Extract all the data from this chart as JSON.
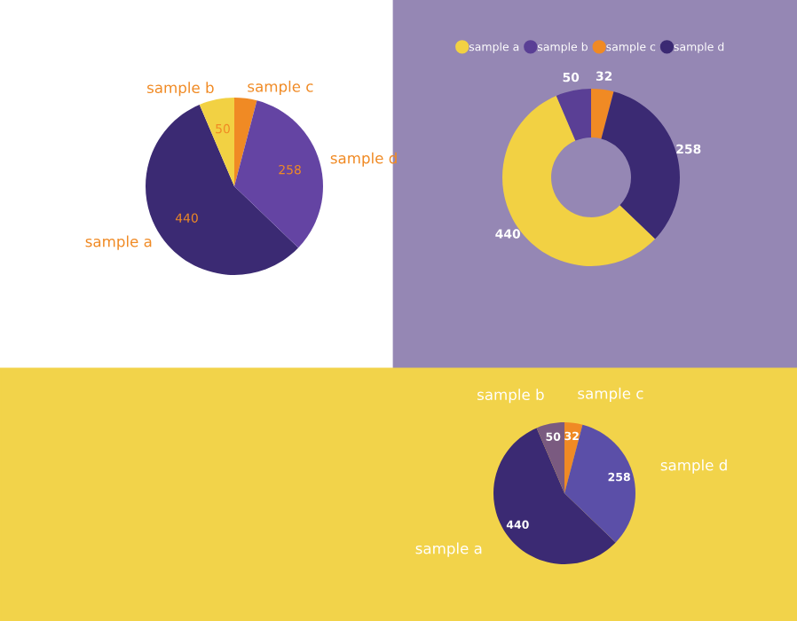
{
  "chart_data": [
    {
      "type": "pie",
      "categories": [
        "sample a",
        "sample b",
        "sample c",
        "sample d"
      ],
      "values": [
        440,
        50,
        32,
        258
      ],
      "colors": [
        "#3b2a73",
        "#f2d143",
        "#f08a24",
        "#6444a3"
      ],
      "value_labels": [
        "440",
        "50",
        null,
        "258"
      ]
    },
    {
      "type": "donut",
      "categories": [
        "sample a",
        "sample b",
        "sample c",
        "sample d"
      ],
      "values": [
        440,
        50,
        32,
        258
      ],
      "colors": [
        "#f2d143",
        "#5a3f95",
        "#f08a24",
        "#3b2a73"
      ],
      "data_labels": true,
      "legend": "top"
    },
    {
      "type": "pie",
      "categories": [
        "sample a",
        "sample b",
        "sample c",
        "sample d"
      ],
      "values": [
        440,
        50,
        32,
        258
      ],
      "colors": [
        "#3b2a73",
        "#7a5a80",
        "#f08a24",
        "#5b4fa8"
      ],
      "data_labels": true
    }
  ]
}
